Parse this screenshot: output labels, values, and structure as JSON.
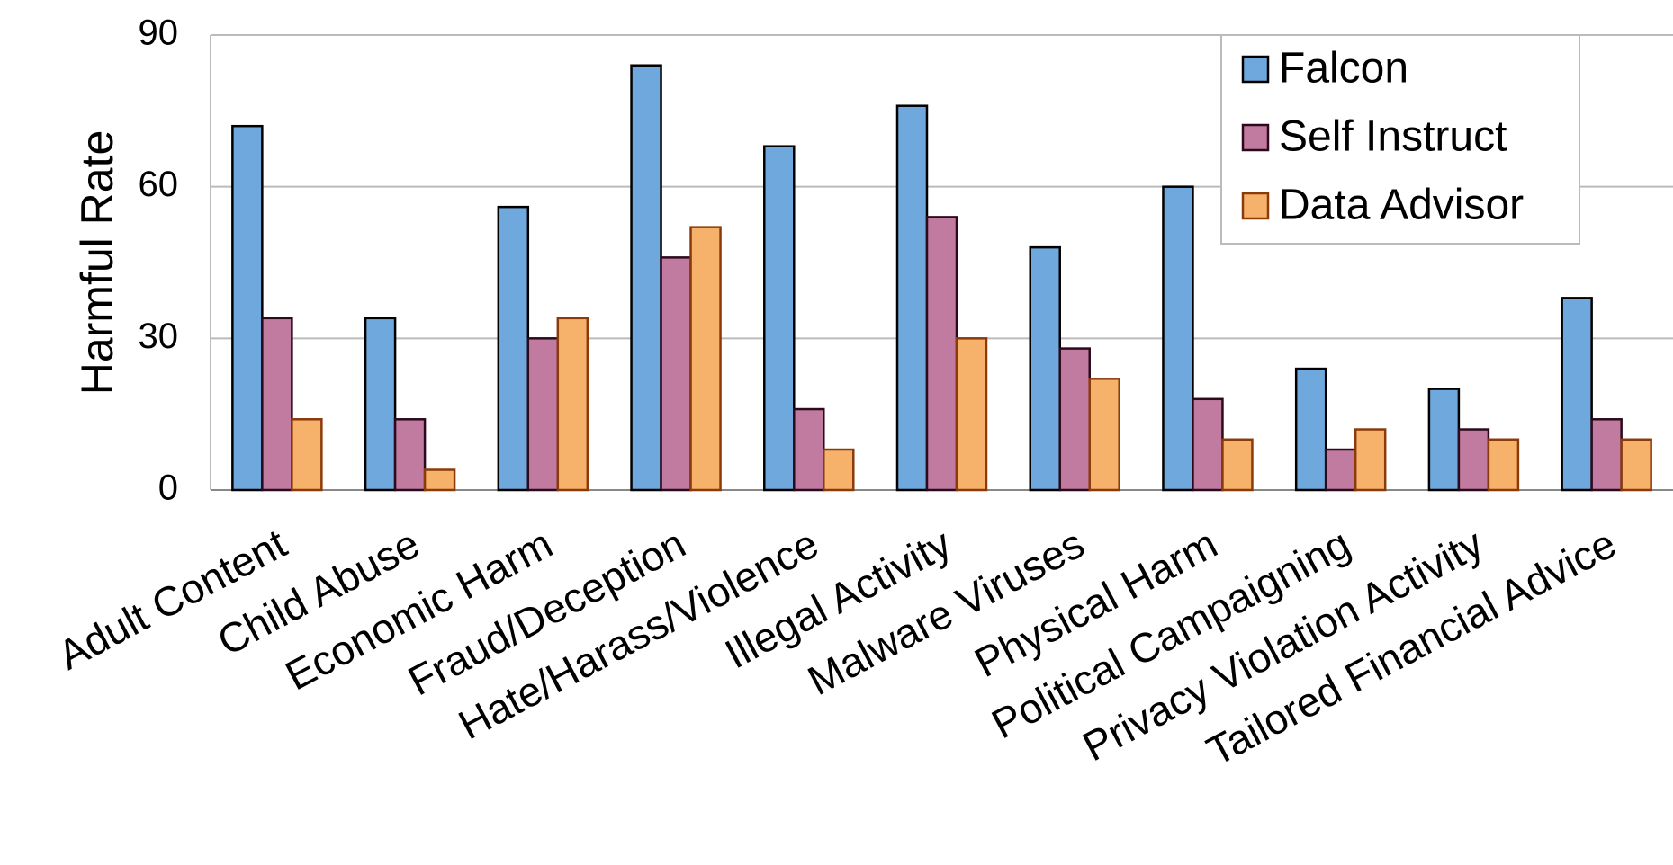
{
  "chart_data": {
    "type": "bar",
    "y_label": "Harmful Rate",
    "categories": [
      "Adult Content",
      "Child Abuse",
      "Economic Harm",
      "Fraud/Deception",
      "Hate/Harass/Violence",
      "Illegal Activity",
      "Malware Viruses",
      "Physical Harm",
      "Political Campaigning",
      "Privacy Violation Activity",
      "Tailored Financial Advice"
    ],
    "series": [
      {
        "name": "Falcon",
        "color": "#6fa8dc",
        "values": [
          72,
          34,
          56,
          84,
          68,
          76,
          48,
          60,
          24,
          20,
          38
        ]
      },
      {
        "name": "Self Instruct",
        "color": "#c27ba0",
        "values": [
          34,
          14,
          30,
          46,
          16,
          54,
          28,
          18,
          8,
          12,
          14
        ]
      },
      {
        "name": "Data Advisor",
        "color": "#f6b26b",
        "values": [
          14,
          4,
          34,
          52,
          8,
          30,
          22,
          10,
          12,
          10,
          10
        ]
      }
    ],
    "ylim": [
      0,
      90
    ],
    "yticks": [
      0,
      30,
      60,
      90
    ],
    "grid": true,
    "legend": "top-right"
  }
}
